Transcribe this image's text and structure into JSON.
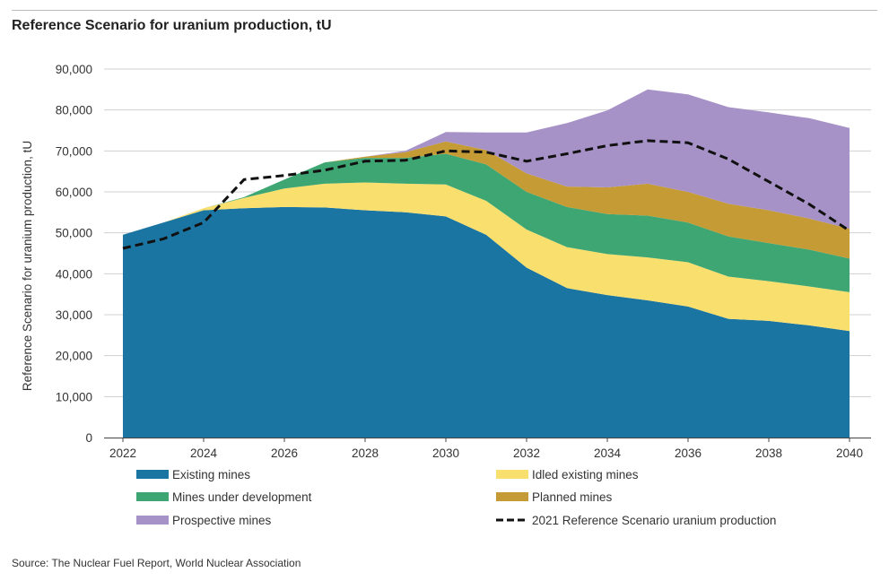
{
  "figure": {
    "title": "Reference Scenario for uranium production, tU",
    "source": "Source: The Nuclear Fuel Report, World Nuclear Association"
  },
  "chart_data": {
    "type": "area",
    "stacked": true,
    "title": "Reference Scenario for uranium production, tU",
    "xlabel": "",
    "ylabel": "Reference Scenario for uranium production, tU",
    "ylim": [
      0,
      90000
    ],
    "yticks": [
      0,
      10000,
      20000,
      30000,
      40000,
      50000,
      60000,
      70000,
      80000,
      90000
    ],
    "ytick_labels": [
      "0",
      "10,000",
      "20,000",
      "30,000",
      "40,000",
      "50,000",
      "60,000",
      "70,000",
      "80,000",
      "90,000"
    ],
    "xticks": [
      2022,
      2024,
      2026,
      2028,
      2030,
      2032,
      2034,
      2036,
      2038,
      2040
    ],
    "xtick_labels": [
      "2022",
      "2024",
      "2026",
      "2028",
      "2030",
      "2032",
      "2034",
      "2036",
      "2038",
      "2040"
    ],
    "grid": "horizontal",
    "legend_placement": "bottom",
    "x": [
      2022,
      2023,
      2024,
      2025,
      2026,
      2027,
      2028,
      2029,
      2030,
      2031,
      2032,
      2033,
      2034,
      2035,
      2036,
      2037,
      2038,
      2039,
      2040
    ],
    "series": [
      {
        "name": "Existing mines",
        "color": "#1b75a2",
        "values": [
          49500,
          52500,
          55500,
          56000,
          56300,
          56200,
          55500,
          55000,
          54000,
          49500,
          41500,
          36500,
          34800,
          33500,
          32000,
          29000,
          28500,
          27400,
          26000
        ]
      },
      {
        "name": "Idled existing mines",
        "color": "#f9df6d",
        "values": [
          0,
          0,
          500,
          2500,
          4500,
          5800,
          6800,
          7000,
          7800,
          8300,
          9300,
          10000,
          10000,
          10500,
          10800,
          10300,
          9700,
          9500,
          9500
        ]
      },
      {
        "name": "Mines under development",
        "color": "#3ea673",
        "values": [
          0,
          0,
          0,
          200,
          2200,
          5200,
          6000,
          6300,
          7500,
          8900,
          9200,
          9800,
          9800,
          10200,
          9700,
          9800,
          9300,
          9000,
          8200
        ]
      },
      {
        "name": "Planned mines",
        "color": "#c49b34",
        "values": [
          0,
          0,
          0,
          0,
          0,
          0,
          300,
          1400,
          3000,
          3500,
          4500,
          5000,
          6500,
          7800,
          7500,
          8000,
          8000,
          7600,
          7300
        ]
      },
      {
        "name": "Prospective mines",
        "color": "#a792c8",
        "values": [
          0,
          0,
          0,
          0,
          0,
          0,
          0,
          300,
          2300,
          4300,
          10000,
          15500,
          18800,
          23000,
          23800,
          23600,
          23900,
          24500,
          24600
        ]
      }
    ],
    "reference_line": {
      "name": "2021 Reference Scenario uranium production",
      "color": "#111111",
      "style": "dashed",
      "values": [
        46200,
        48500,
        52500,
        63000,
        64000,
        65300,
        67500,
        67700,
        70000,
        69700,
        67500,
        69300,
        71300,
        72500,
        72000,
        68000,
        62500,
        57000,
        50500
      ]
    },
    "legend": [
      {
        "label": "Existing mines",
        "kind": "swatch",
        "color": "#1b75a2"
      },
      {
        "label": "Idled existing mines",
        "kind": "swatch",
        "color": "#f9df6d"
      },
      {
        "label": "Mines under development",
        "kind": "swatch",
        "color": "#3ea673"
      },
      {
        "label": "Planned mines",
        "kind": "swatch",
        "color": "#c49b34"
      },
      {
        "label": "Prospective mines",
        "kind": "swatch",
        "color": "#a792c8"
      },
      {
        "label": "2021 Reference Scenario uranium production",
        "kind": "dashed-line",
        "color": "#111111"
      }
    ]
  }
}
